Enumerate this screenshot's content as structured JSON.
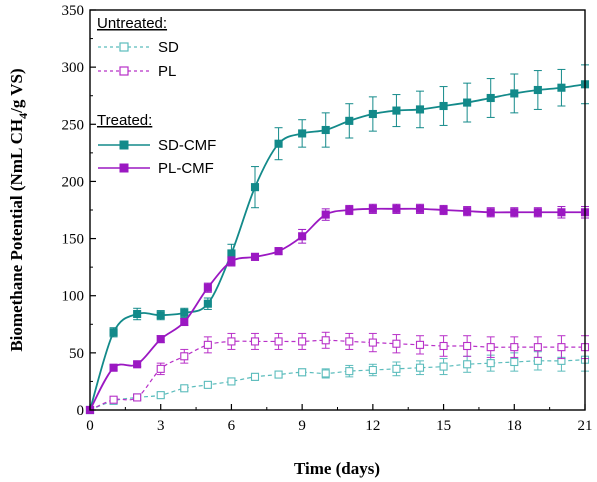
{
  "chart_data": {
    "type": "line",
    "xlabel": "Time (days)",
    "ylabel_parts": [
      "Biomethane Potential (NmL CH",
      "4",
      "/g VS)"
    ],
    "xlim": [
      0,
      21
    ],
    "ylim": [
      0,
      350
    ],
    "xticks": [
      0,
      3,
      6,
      9,
      12,
      15,
      18,
      21
    ],
    "yticks": [
      0,
      50,
      100,
      150,
      200,
      250,
      300,
      350
    ],
    "grid": false,
    "legend_position": "top-left",
    "legend_groups": [
      {
        "heading": "Untreated:",
        "series": [
          "SD",
          "PL"
        ]
      },
      {
        "heading": "Treated:",
        "series": [
          "SD-CMF",
          "PL-CMF"
        ]
      }
    ],
    "series": [
      {
        "name": "SD",
        "color": "#5bbcbc",
        "line": "dashed",
        "marker": "open-square",
        "x": [
          0,
          1,
          2,
          3,
          4,
          5,
          6,
          7,
          8,
          9,
          10,
          11,
          12,
          13,
          14,
          15,
          16,
          17,
          18,
          19,
          20,
          21
        ],
        "y": [
          0,
          8,
          11,
          13,
          19,
          22,
          25,
          29,
          31,
          33,
          32,
          34,
          35,
          36,
          37,
          38,
          40,
          41,
          42,
          43,
          43,
          44
        ],
        "err": [
          0,
          2,
          2,
          2,
          2,
          2,
          3,
          3,
          3,
          3,
          4,
          5,
          5,
          6,
          6,
          7,
          7,
          7,
          8,
          8,
          9,
          10
        ]
      },
      {
        "name": "PL",
        "color": "#b830c8",
        "line": "dashed",
        "marker": "open-square",
        "x": [
          0,
          1,
          2,
          3,
          4,
          5,
          6,
          7,
          8,
          9,
          10,
          11,
          12,
          13,
          14,
          15,
          16,
          17,
          18,
          19,
          20,
          21
        ],
        "y": [
          0,
          9,
          11,
          36,
          47,
          57,
          60,
          60,
          60,
          60,
          61,
          60,
          59,
          58,
          57,
          56,
          56,
          55,
          55,
          55,
          55,
          55
        ],
        "err": [
          0,
          2,
          2,
          5,
          6,
          7,
          7,
          7,
          7,
          7,
          7,
          7,
          8,
          8,
          8,
          9,
          9,
          9,
          9,
          9,
          10,
          10
        ]
      },
      {
        "name": "SD-CMF",
        "color": "#138a8a",
        "line": "solid",
        "marker": "filled-square",
        "x": [
          0,
          1,
          2,
          3,
          4,
          5,
          6,
          7,
          8,
          9,
          10,
          11,
          12,
          13,
          14,
          15,
          16,
          17,
          18,
          19,
          20,
          21
        ],
        "y": [
          0,
          68,
          84,
          83,
          85,
          93,
          137,
          195,
          233,
          242,
          245,
          253,
          259,
          262,
          263,
          266,
          269,
          273,
          277,
          280,
          282,
          285
        ],
        "err": [
          0,
          4,
          5,
          4,
          4,
          5,
          8,
          18,
          14,
          12,
          15,
          15,
          15,
          14,
          16,
          17,
          17,
          17,
          17,
          17,
          16,
          17
        ]
      },
      {
        "name": "PL-CMF",
        "color": "#9b18c2",
        "line": "solid",
        "marker": "filled-square",
        "x": [
          0,
          1,
          2,
          3,
          4,
          5,
          6,
          7,
          8,
          9,
          10,
          11,
          12,
          13,
          14,
          15,
          16,
          17,
          18,
          19,
          20,
          21
        ],
        "y": [
          0,
          37,
          40,
          62,
          77,
          107,
          130,
          134,
          139,
          152,
          171,
          175,
          176,
          176,
          176,
          175,
          174,
          173,
          173,
          173,
          173,
          173
        ],
        "err": [
          0,
          2,
          2,
          3,
          3,
          4,
          4,
          3,
          3,
          6,
          5,
          4,
          4,
          4,
          4,
          4,
          4,
          4,
          4,
          4,
          5,
          5
        ]
      }
    ]
  }
}
